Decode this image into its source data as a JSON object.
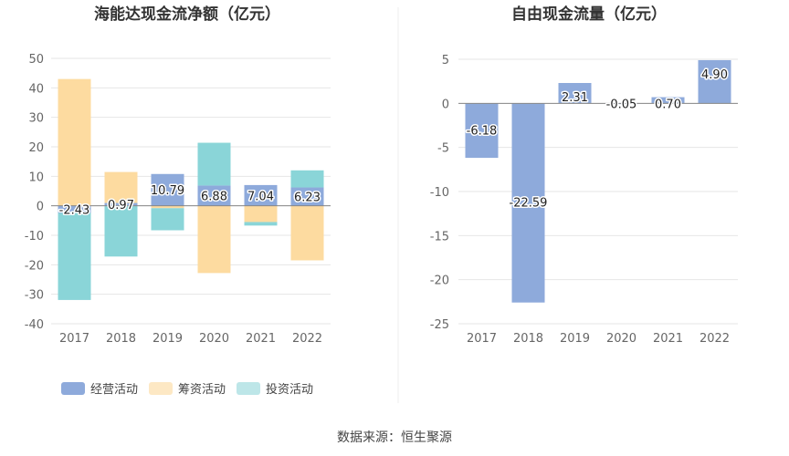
{
  "source_text": "数据来源：恒生聚源",
  "colors": {
    "operating": "#8eaadb",
    "financing": "#fddba0",
    "investing": "#8ad5d8",
    "grid": "#e6e6e6",
    "axis": "#888888"
  },
  "chart_data": [
    {
      "type": "bar",
      "stacked": true,
      "title": "海能达现金流净额（亿元）",
      "categories": [
        "2017",
        "2018",
        "2019",
        "2020",
        "2021",
        "2022"
      ],
      "ylim": [
        -40,
        50
      ],
      "yticks": [
        50,
        40,
        30,
        20,
        10,
        0,
        -10,
        -20,
        -30,
        -40
      ],
      "grid": true,
      "legend_position": "bottom",
      "series": [
        {
          "name": "经营活动",
          "color": "#8eaadb",
          "values": [
            -2.43,
            0.97,
            10.79,
            6.88,
            7.04,
            6.23
          ]
        },
        {
          "name": "筹资活动",
          "color": "#fddba0",
          "values": [
            43.0,
            10.5,
            -0.8,
            -22.8,
            -5.5,
            -18.5
          ]
        },
        {
          "name": "投资活动",
          "color": "#8ad5d8",
          "values": [
            -29.5,
            -17.2,
            -7.5,
            14.5,
            -1.2,
            5.8
          ]
        }
      ],
      "data_labels": [
        "-2.43",
        "0.97",
        "10.79",
        "6.88",
        "7.04",
        "6.23"
      ]
    },
    {
      "type": "bar",
      "title": "自由现金流量（亿元）",
      "categories": [
        "2017",
        "2018",
        "2019",
        "2020",
        "2021",
        "2022"
      ],
      "ylim": [
        -25,
        5
      ],
      "yticks": [
        5,
        0,
        -5,
        -10,
        -15,
        -20,
        -25
      ],
      "grid": true,
      "series": [
        {
          "color": "#8eaadb",
          "values": [
            -6.18,
            -22.59,
            2.31,
            -0.05,
            0.7,
            4.9
          ]
        }
      ],
      "data_labels": [
        "-6.18",
        "-22.59",
        "2.31",
        "-0.05",
        "0.70",
        "4.90"
      ]
    }
  ]
}
